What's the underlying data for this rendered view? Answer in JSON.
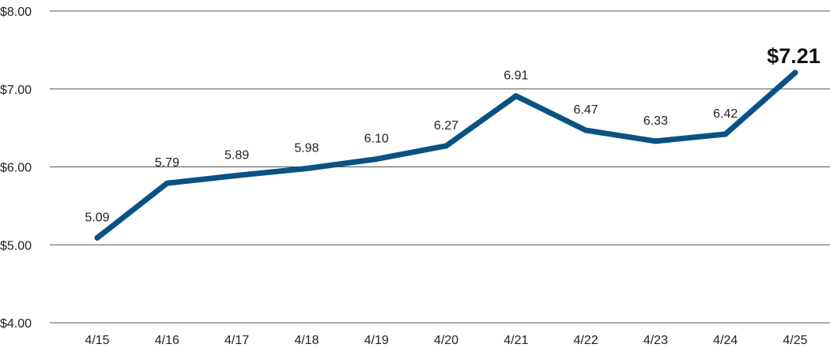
{
  "chart_data": {
    "type": "line",
    "categories": [
      "4/15",
      "4/16",
      "4/17",
      "4/18",
      "4/19",
      "4/20",
      "4/21",
      "4/22",
      "4/23",
      "4/24",
      "4/25"
    ],
    "values": [
      5.09,
      5.79,
      5.89,
      5.98,
      6.1,
      6.27,
      6.91,
      6.47,
      6.33,
      6.42,
      7.21
    ],
    "data_labels": [
      "5.09",
      "5.79",
      "5.89",
      "5.98",
      "6.10",
      "6.27",
      "6.91",
      "6.47",
      "6.33",
      "6.42",
      "$7.21"
    ],
    "y_ticks": [
      4,
      5,
      6,
      7,
      8
    ],
    "y_tick_labels": [
      "$4.00",
      "$5.00",
      "$6.00",
      "$7.00",
      "$8.00"
    ],
    "ylim": [
      4,
      8
    ],
    "grid": true,
    "line_color": "#0a5283",
    "title": "",
    "xlabel": "",
    "ylabel": ""
  }
}
